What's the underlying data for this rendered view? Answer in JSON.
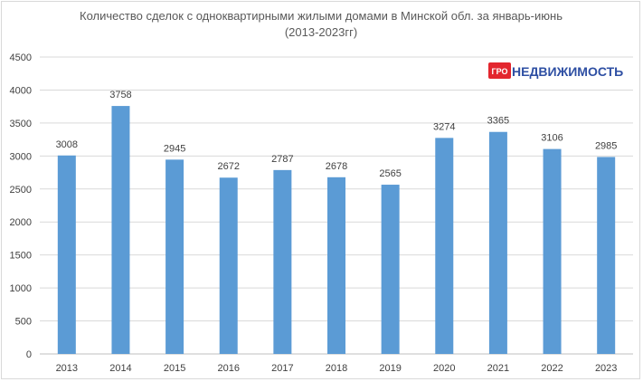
{
  "chart_data": {
    "type": "bar",
    "title": "Количество сделок с одноквартирными жилыми домами в Минской обл. за январь-июнь",
    "subtitle": "(2013-2023гг)",
    "categories": [
      "2013",
      "2014",
      "2015",
      "2016",
      "2017",
      "2018",
      "2019",
      "2020",
      "2021",
      "2022",
      "2023"
    ],
    "values": [
      3008,
      3758,
      2945,
      2672,
      2787,
      2678,
      2565,
      3274,
      3365,
      3106,
      2985
    ],
    "ylim": [
      0,
      4500
    ],
    "yticks": [
      "0",
      "500",
      "1000",
      "1500",
      "2000",
      "2500",
      "3000",
      "3500",
      "4000",
      "4500"
    ],
    "grid": true,
    "bar_color": "#5b9bd5",
    "legend": "none"
  },
  "logo": {
    "badge": "ГРО",
    "text": "НЕДВИЖИМОСТЬ",
    "badge_color": "#e3262e",
    "text_color": "#2e4fa3"
  }
}
